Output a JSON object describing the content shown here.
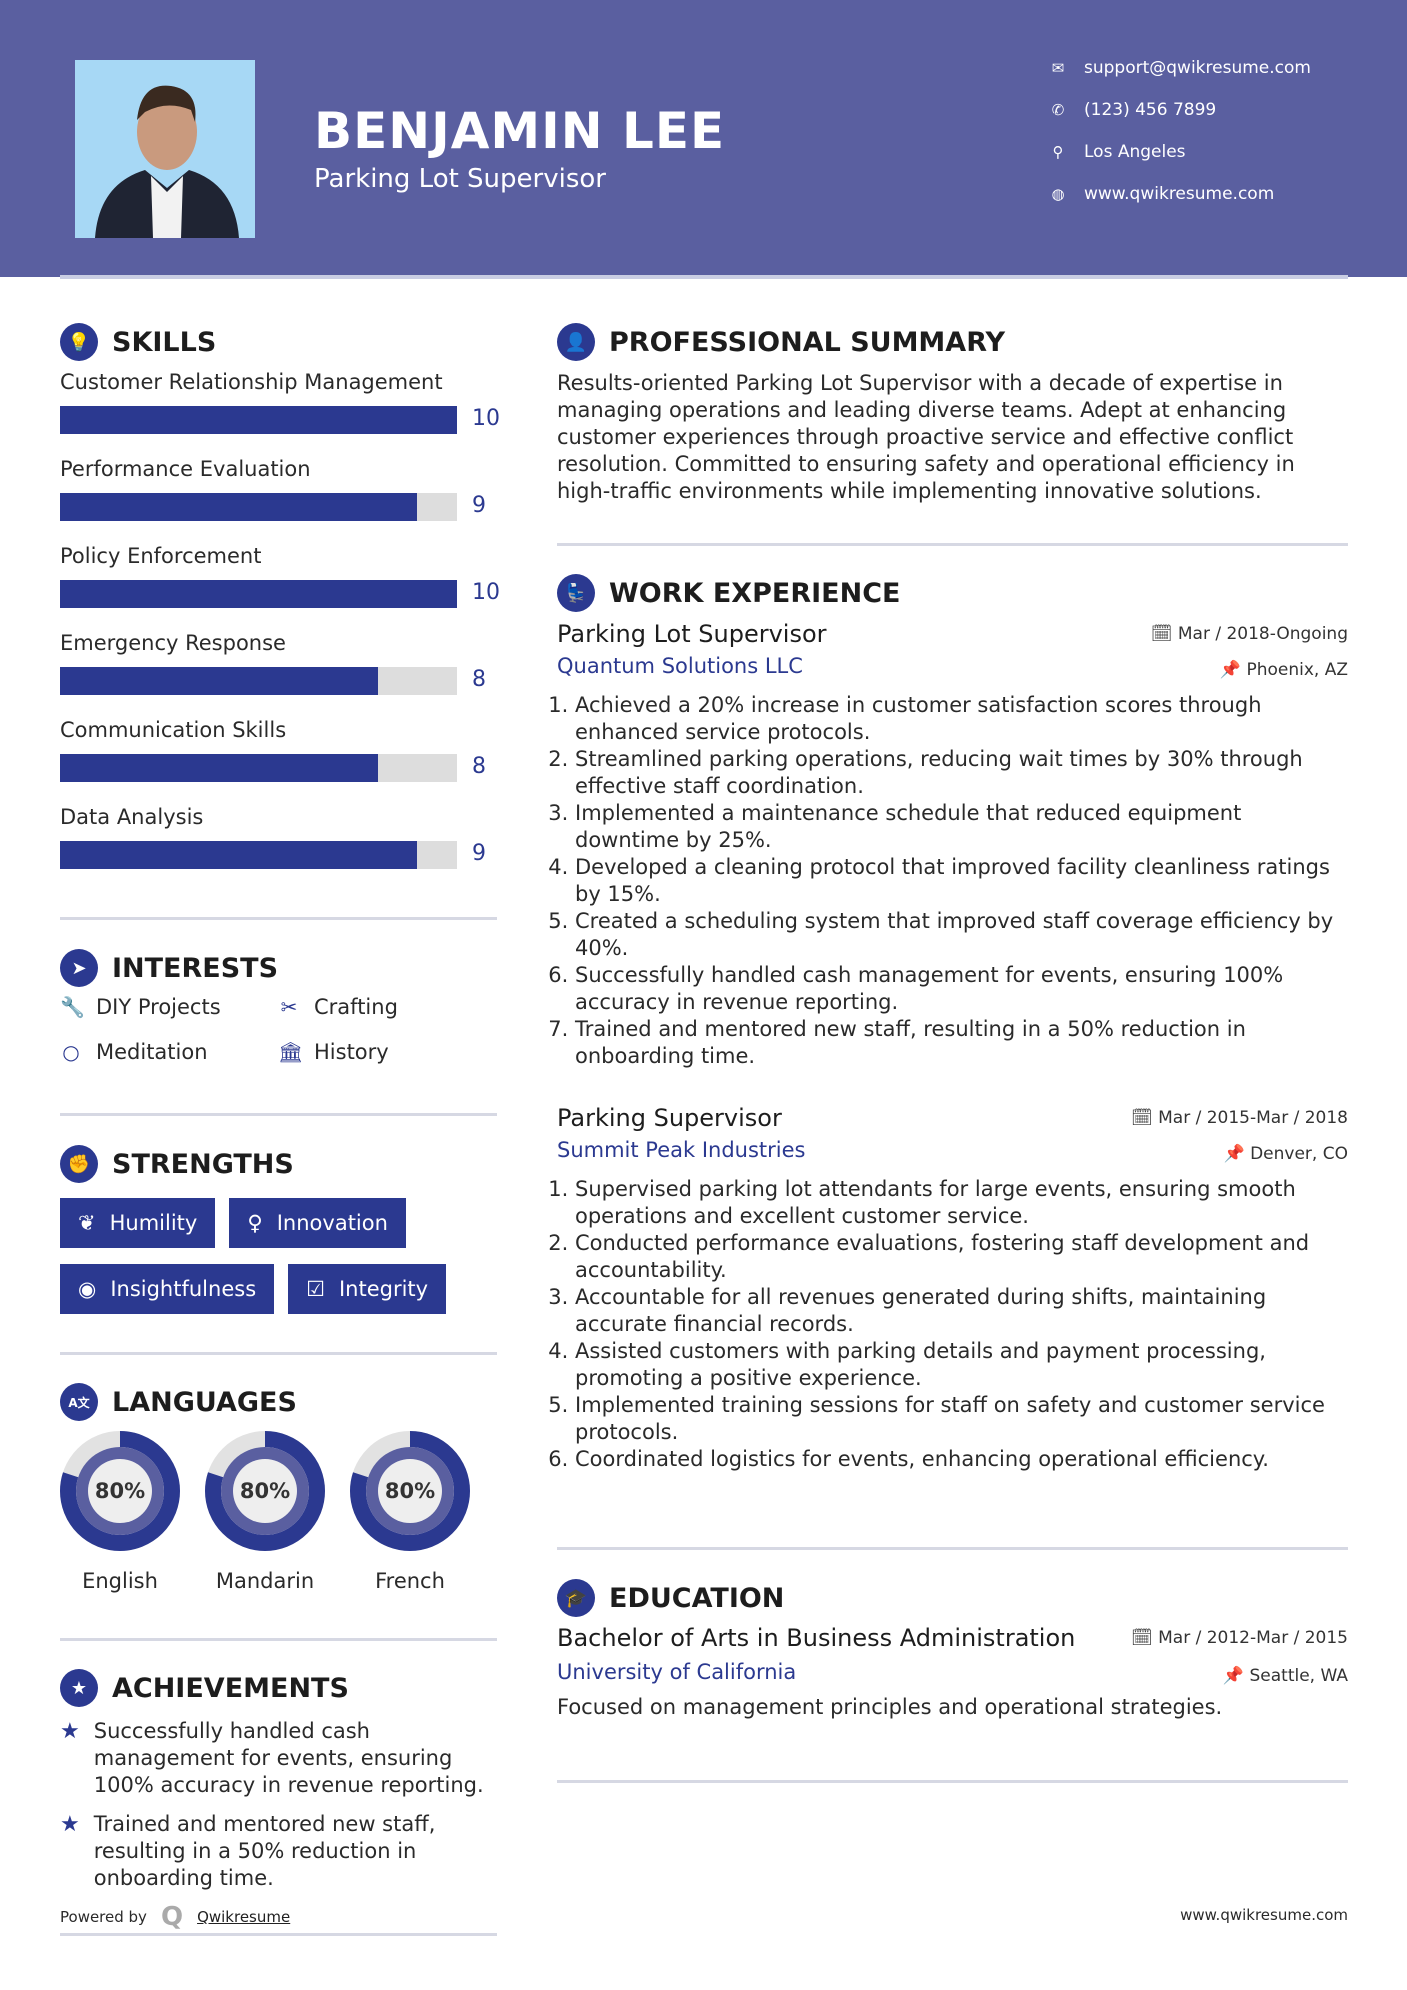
{
  "header": {
    "name": "BENJAMIN LEE",
    "title": "Parking Lot Supervisor",
    "contacts": [
      {
        "icon": "envelope-icon",
        "glyph": "✉",
        "text": "support@qwikresume.com"
      },
      {
        "icon": "phone-icon",
        "glyph": "✆",
        "text": "(123) 456 7899"
      },
      {
        "icon": "map-pin-icon",
        "glyph": "⚲",
        "text": "Los Angeles"
      },
      {
        "icon": "globe-icon",
        "glyph": "◍",
        "text": "www.qwikresume.com"
      }
    ]
  },
  "colors": {
    "header": "#5a5fa0",
    "accent": "#2b3990"
  },
  "skills": {
    "title": "SKILLS",
    "max": 10,
    "items": [
      {
        "label": "Customer Relationship Management",
        "value": 10
      },
      {
        "label": "Performance Evaluation",
        "value": 9
      },
      {
        "label": "Policy Enforcement",
        "value": 10
      },
      {
        "label": "Emergency Response",
        "value": 8
      },
      {
        "label": "Communication Skills",
        "value": 8
      },
      {
        "label": "Data Analysis",
        "value": 9
      }
    ]
  },
  "interests": {
    "title": "INTERESTS",
    "items": [
      {
        "label": "DIY Projects",
        "icon": "wrench-icon",
        "glyph": "🔧"
      },
      {
        "label": "Crafting",
        "icon": "scissors-icon",
        "glyph": "✂"
      },
      {
        "label": "Meditation",
        "icon": "circle-icon",
        "glyph": "○"
      },
      {
        "label": "History",
        "icon": "museum-icon",
        "glyph": "🏛"
      }
    ]
  },
  "strengths": {
    "title": "STRENGTHS",
    "items": [
      {
        "label": "Humility",
        "icon": "leaf-icon",
        "glyph": "❦"
      },
      {
        "label": "Innovation",
        "icon": "lightbulb-icon",
        "glyph": "♀"
      },
      {
        "label": "Insightfulness",
        "icon": "eye-icon",
        "glyph": "◉"
      },
      {
        "label": "Integrity",
        "icon": "check-square-icon",
        "glyph": "☑"
      }
    ]
  },
  "languages": {
    "title": "LANGUAGES",
    "items": [
      {
        "label": "English",
        "percent": 80,
        "text": "80%"
      },
      {
        "label": "Mandarin",
        "percent": 80,
        "text": "80%"
      },
      {
        "label": "French",
        "percent": 80,
        "text": "80%"
      }
    ]
  },
  "achievements": {
    "title": "ACHIEVEMENTS",
    "items": [
      "Successfully handled cash management for events, ensuring 100% accuracy in revenue reporting.",
      "Trained and mentored new staff, resulting in a 50% reduction in onboarding time."
    ]
  },
  "summary": {
    "title": "PROFESSIONAL SUMMARY",
    "text": "Results-oriented Parking Lot Supervisor with a decade of expertise in managing operations and leading diverse teams. Adept at enhancing customer experiences through proactive service and effective conflict resolution. Committed to ensuring safety and operational efficiency in high-traffic environments while implementing innovative solutions."
  },
  "experience": {
    "title": "WORK EXPERIENCE",
    "jobs": [
      {
        "title": "Parking Lot Supervisor",
        "company": "Quantum Solutions LLC",
        "date": "Mar / 2018-Ongoing",
        "location": "Phoenix, AZ",
        "bullets": [
          "Achieved a 20% increase in customer satisfaction scores through enhanced service protocols.",
          "Streamlined parking operations, reducing wait times by 30% through effective staff coordination.",
          "Implemented a maintenance schedule that reduced equipment downtime by 25%.",
          "Developed a cleaning protocol that improved facility cleanliness ratings by 15%.",
          "Created a scheduling system that improved staff coverage efficiency by 40%.",
          "Successfully handled cash management for events, ensuring 100% accuracy in revenue reporting.",
          "Trained and mentored new staff, resulting in a 50% reduction in onboarding time."
        ]
      },
      {
        "title": "Parking Supervisor",
        "company": "Summit Peak Industries",
        "date": "Mar / 2015-Mar / 2018",
        "location": "Denver, CO",
        "bullets": [
          "Supervised parking lot attendants for large events, ensuring smooth operations and excellent customer service.",
          "Conducted performance evaluations, fostering staff development and accountability.",
          "Accountable for all revenues generated during shifts, maintaining accurate financial records.",
          "Assisted customers with parking details and payment processing, promoting a positive experience.",
          "Implemented training sessions for staff on safety and customer service protocols.",
          "Coordinated logistics for events, enhancing operational efficiency."
        ]
      }
    ]
  },
  "education": {
    "title": "EDUCATION",
    "degree": "Bachelor of Arts in Business Administration",
    "school": "University of California",
    "date": "Mar / 2012-Mar / 2015",
    "location": "Seattle, WA",
    "description": "Focused on management principles and operational strategies."
  },
  "footer": {
    "powered_by": "Powered by",
    "brand": "Qwikresume",
    "website": "www.qwikresume.com"
  }
}
